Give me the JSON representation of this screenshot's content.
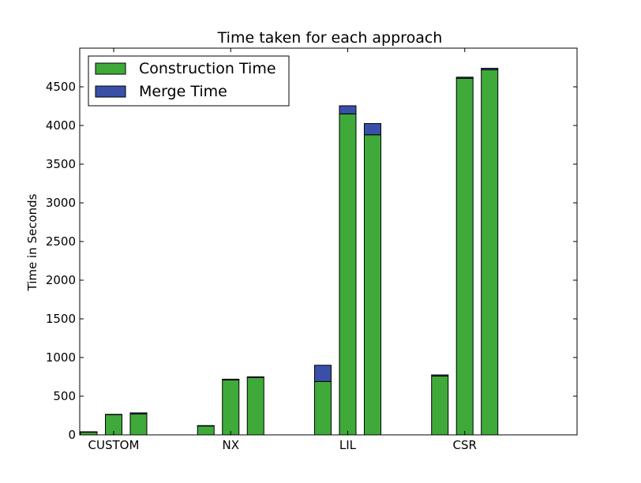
{
  "chart_data": {
    "type": "bar",
    "stacked": true,
    "title": "Time taken for each approach",
    "xlabel": "",
    "ylabel": "Time in Seconds",
    "ylim": [
      0,
      5000
    ],
    "yticks": [
      0,
      500,
      1000,
      1500,
      2000,
      2500,
      3000,
      3500,
      4000,
      4500
    ],
    "groups": [
      "CUSTOM",
      "NX",
      "LIL",
      "CSR"
    ],
    "bars_per_group": 3,
    "grid": false,
    "legend_position": "top-left",
    "series": [
      {
        "name": "Construction Time",
        "color": "#3faa3a",
        "values": [
          35,
          260,
          270,
          115,
          710,
          740,
          690,
          4150,
          3880,
          760,
          4610,
          4720
        ]
      },
      {
        "name": "Merge Time",
        "color": "#3a50a8",
        "values": [
          5,
          5,
          15,
          5,
          10,
          10,
          210,
          105,
          145,
          15,
          15,
          20
        ]
      }
    ]
  }
}
